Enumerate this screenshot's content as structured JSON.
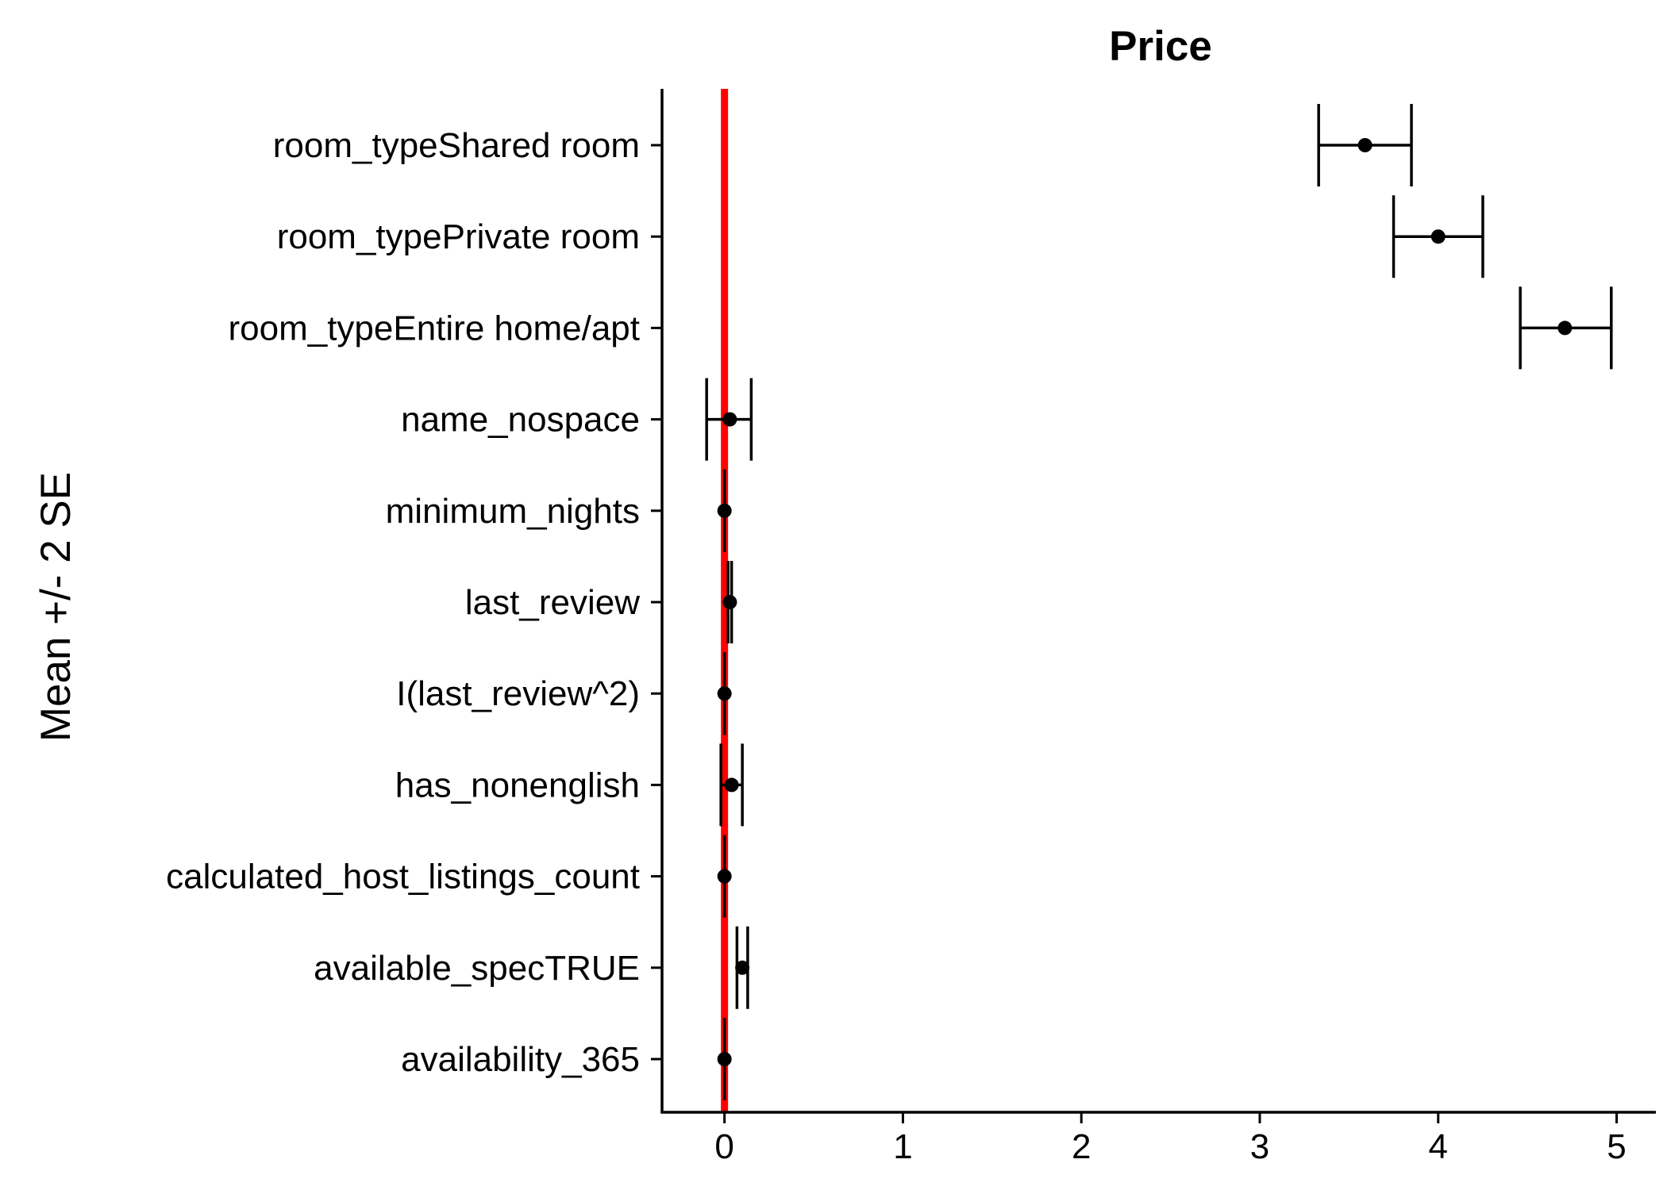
{
  "chart_data": {
    "type": "errorbar",
    "title": "Price",
    "xlabel": "",
    "ylabel": "Mean +/- 2 SE",
    "xlim": [
      -0.35,
      5.22
    ],
    "xticks": [
      "0",
      "1",
      "2",
      "3",
      "4",
      "5"
    ],
    "xtick_values": [
      0,
      1,
      2,
      3,
      4,
      5
    ],
    "reference_line": {
      "x": 0,
      "color": "#ff0000"
    },
    "mark_color": "#000000",
    "grid": false,
    "legend": "none",
    "categories": [
      "room_typeShared room",
      "room_typePrivate room",
      "room_typeEntire home/apt",
      "name_nospace",
      "minimum_nights",
      "last_review",
      "I(last_review^2)",
      "has_nonenglish",
      "calculated_host_listings_count",
      "available_specTRUE",
      "availability_365"
    ],
    "means": [
      3.59,
      4.0,
      4.71,
      0.03,
      0.0,
      0.03,
      0.0,
      0.04,
      0.0,
      0.1,
      0.0
    ],
    "lower": [
      3.33,
      3.75,
      4.46,
      -0.1,
      0.0,
      0.02,
      0.0,
      -0.02,
      0.0,
      0.07,
      0.0
    ],
    "upper": [
      3.85,
      4.25,
      4.97,
      0.15,
      0.0,
      0.04,
      0.0,
      0.1,
      0.0,
      0.13,
      0.0
    ]
  }
}
